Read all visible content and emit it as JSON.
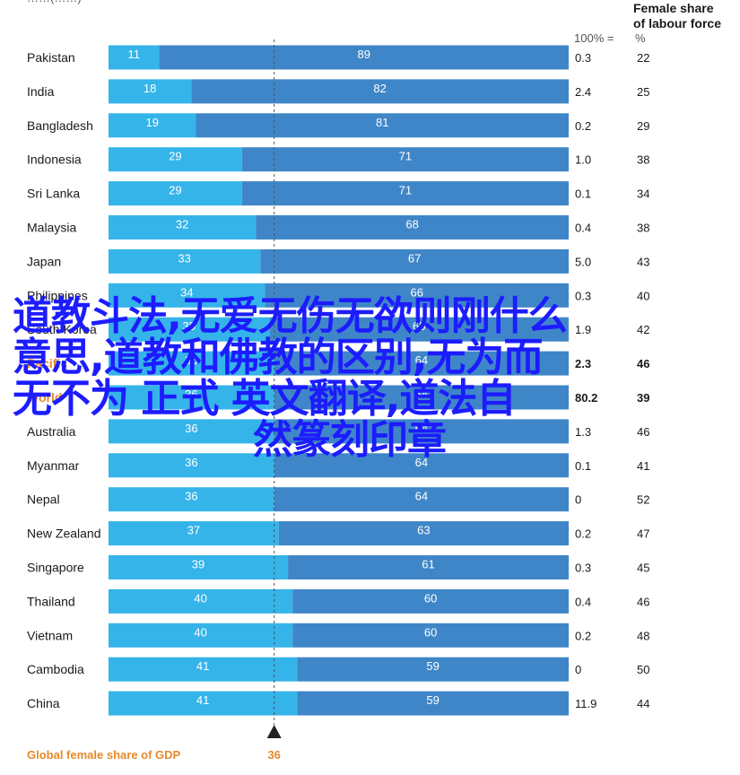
{
  "header": {
    "top_cut_text": "……(……)",
    "female_share_title_line1": "Female share",
    "female_share_title_line2": "of labour force",
    "x100_label": "100% =",
    "pct_label": "%"
  },
  "footer": {
    "gdp_label": "Global female share of GDP",
    "gdp_value": "36",
    "marker_value": 36
  },
  "overlay_text": {
    "line1": "道教斗法,无爱无伤无欲则刚什么",
    "line2": "意思,道教和佛教的区别,无为而",
    "line3": "无不为 正式 英文翻译,道法自",
    "line4": "然篆刻印章"
  },
  "colors": {
    "light_bar": "#35b4ea",
    "dark_bar": "#3f86c8",
    "highlight_text": "#e58a2c",
    "overlay_text": "#1c1cff"
  },
  "chart_data": {
    "type": "bar",
    "orientation": "horizontal",
    "stacked": true,
    "xlim": [
      0,
      100
    ],
    "categories": [
      "Pakistan",
      "India",
      "Bangladesh",
      "Indonesia",
      "Sri Lanka",
      "Malaysia",
      "Japan",
      "Philippines",
      "South Korea",
      "Pacific",
      "World",
      "Australia",
      "Myanmar",
      "Nepal",
      "New Zealand",
      "Singapore",
      "Thailand",
      "Vietnam",
      "Cambodia",
      "China"
    ],
    "category_labels": [
      "Pakistan",
      "India",
      "Bangladesh",
      "Indonesia",
      "Sri Lanka",
      "Malaysia",
      "Japan",
      "Philippines",
      "South Korea",
      "Pacific",
      "World",
      "Australia",
      "Myanmar",
      "Nepal",
      "New Zealand",
      "Singapore",
      "Thailand",
      "Vietnam",
      "Cambodia",
      "China"
    ],
    "series": [
      {
        "values": [
          11,
          18,
          19,
          29,
          29,
          32,
          33,
          34,
          35,
          36,
          36,
          36,
          36,
          36,
          37,
          39,
          40,
          40,
          41,
          41
        ]
      },
      {
        "values": [
          89,
          82,
          81,
          71,
          71,
          68,
          67,
          66,
          65,
          64,
          64,
          64,
          64,
          64,
          63,
          61,
          60,
          60,
          59,
          59
        ]
      }
    ],
    "x100_values": [
      "0.3",
      "2.4",
      "0.2",
      "1.0",
      "0.1",
      "0.4",
      "5.0",
      "0.3",
      "1.9",
      "2.3",
      "80.2",
      "1.3",
      "0.1",
      "0",
      "0.2",
      "0.3",
      "0.4",
      "0.2",
      "0",
      "11.9"
    ],
    "female_share_labour_force": [
      "22",
      "25",
      "29",
      "38",
      "34",
      "38",
      "43",
      "40",
      "42",
      "46",
      "39",
      "46",
      "41",
      "52",
      "47",
      "45",
      "46",
      "48",
      "50",
      "44"
    ],
    "highlight_rows": [
      9,
      10
    ],
    "reference_line": 36
  }
}
